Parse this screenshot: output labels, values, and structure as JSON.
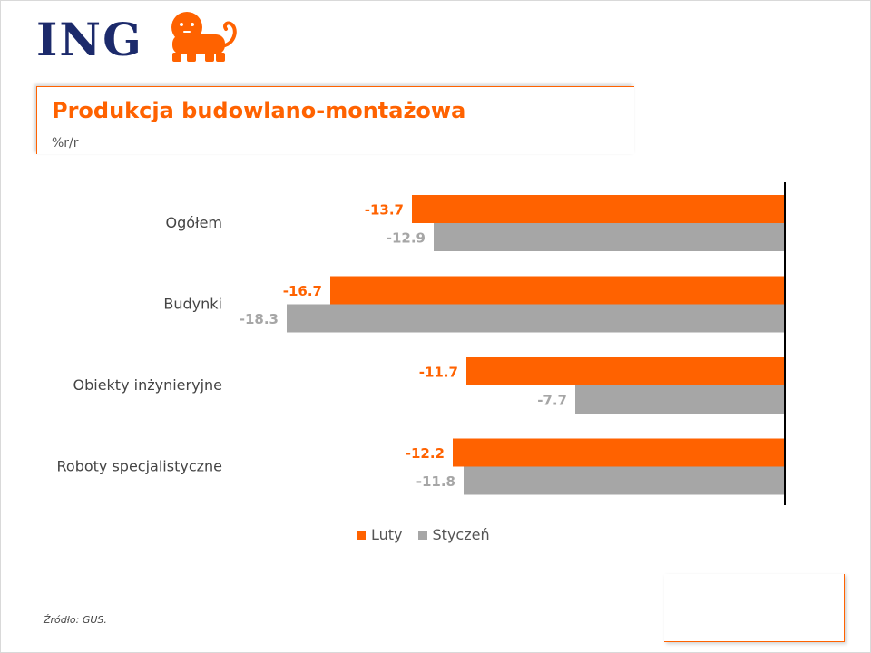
{
  "brand": {
    "name": "ING",
    "logo_icon": "lion-icon"
  },
  "colors": {
    "accent": "#ff6200",
    "secondary": "#a6a6a6",
    "brand_navy": "#1c2a6b"
  },
  "chart_data": {
    "type": "bar",
    "orientation": "horizontal",
    "title": "Produkcja budowlano-montażowa",
    "subtitle": "%r/r",
    "categories": [
      "Ogółem",
      "Budynki",
      "Obiekty inżynieryjne",
      "Roboty specjalistyczne"
    ],
    "series": [
      {
        "name": "Luty",
        "color": "#ff6200",
        "values": [
          -13.7,
          -16.7,
          -11.7,
          -12.2
        ],
        "labels": [
          "-13.7",
          "-16.7",
          "-11.7",
          "-12.2"
        ]
      },
      {
        "name": "Styczeń",
        "color": "#a6a6a6",
        "values": [
          -12.9,
          -18.3,
          -7.7,
          -11.8
        ],
        "labels": [
          "-12.9",
          "-18.3",
          "-7.7",
          "-11.8"
        ]
      }
    ],
    "xlim": [
      -18.3,
      0
    ],
    "grid": false,
    "legend": "bottom"
  },
  "source": "Źródło: GUS."
}
